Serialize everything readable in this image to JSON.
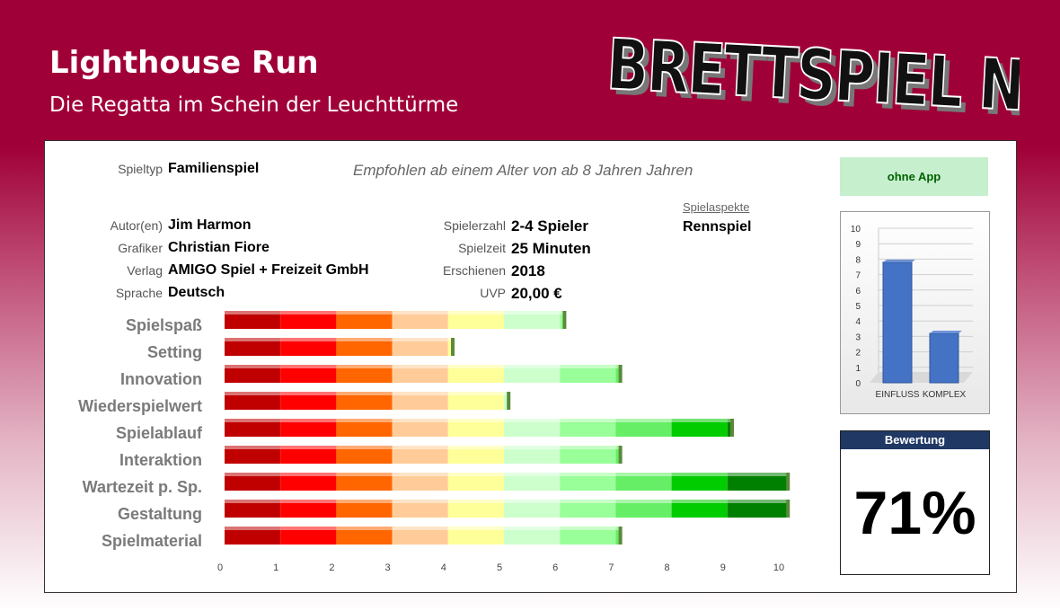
{
  "header": {
    "title": "Lighthouse Run",
    "subtitle": "Die Regatta im Schein der Leuchttürme",
    "logo_text": "BRETTSPIEL NEWS"
  },
  "info": {
    "spieltyp_label": "Spieltyp",
    "spieltyp": "Familienspiel",
    "recommend": "Empfohlen ab einem Alter von ab 8 Jahren Jahren",
    "autor_label": "Autor(en)",
    "autor": "Jim Harmon",
    "grafiker_label": "Grafiker",
    "grafiker": "Christian Fiore",
    "verlag_label": "Verlag",
    "verlag": "AMIGO Spiel + Freizeit GmbH",
    "sprache_label": "Sprache",
    "sprache": "Deutsch",
    "spielerzahl_label": "Spielerzahl",
    "spielerzahl": "2-4 Spieler",
    "spielzeit_label": "Spielzeit",
    "spielzeit": "25 Minuten",
    "erschienen_label": "Erschienen",
    "erschienen": "2018",
    "uvp_label": "UVP",
    "uvp": "20,00 €",
    "aspekte_label": "Spielaspekte",
    "aspekte": "Rennspiel"
  },
  "app_status": "ohne App",
  "rating": {
    "label": "Bewertung",
    "value": "71%"
  },
  "colors": {
    "segments": [
      "#c00000",
      "#ff0000",
      "#ff6600",
      "#ffcc99",
      "#ffff99",
      "#ccffcc",
      "#99ff99",
      "#66ee66",
      "#00cc00",
      "#008000"
    ]
  },
  "chart_data": [
    {
      "type": "bar",
      "orientation": "horizontal",
      "categories": [
        "Spielspaß",
        "Setting",
        "Innovation",
        "Wiederspielwert",
        "Spielablauf",
        "Interaktion",
        "Wartezeit p. Sp.",
        "Gestaltung",
        "Spielmaterial"
      ],
      "values": [
        6.1,
        4.1,
        7.1,
        5.1,
        9.1,
        7.1,
        10.1,
        10.1,
        7.1
      ],
      "xlim": [
        0,
        10
      ],
      "xticks": [
        "0",
        "1",
        "2",
        "3",
        "4",
        "5",
        "6",
        "7",
        "8",
        "9",
        "10"
      ],
      "grid": false
    },
    {
      "type": "bar",
      "categories": [
        "EINFLUSS",
        "KOMPLEX"
      ],
      "values": [
        7.8,
        3.2
      ],
      "ylim": [
        0,
        10
      ],
      "yticks": [
        "0",
        "1",
        "2",
        "3",
        "4",
        "5",
        "6",
        "7",
        "8",
        "9",
        "10"
      ],
      "grid": true
    }
  ]
}
